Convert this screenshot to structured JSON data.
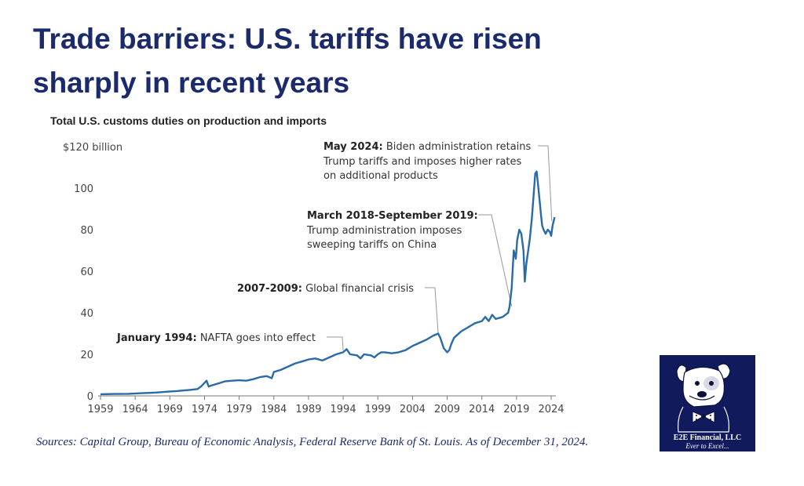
{
  "title": "Trade barriers: U.S. tariffs have risen sharply in recent years",
  "sources": "Sources: Capital Group, Bureau of Economic Analysis, Federal Reserve Bank of St. Louis. As of December 31, 2024.",
  "logo": {
    "name": "E2E Financial, LLC",
    "tagline": "Ever to Excel...",
    "icon": "dog-mascot-icon"
  },
  "colors": {
    "title": "#1b2a6b",
    "line": "#2a6aa8",
    "logo_bg": "#101a5c",
    "leader": "#999999"
  },
  "chart_data": {
    "type": "line",
    "title": "Total U.S. customs duties on production and imports",
    "ylabel": "$120 billion",
    "ylim": [
      0,
      120
    ],
    "xlim": [
      1959,
      2024.5
    ],
    "y_ticks": [
      0,
      20,
      40,
      60,
      80,
      100
    ],
    "y_tick_labels": [
      "0",
      "20",
      "40",
      "60",
      "80",
      "100"
    ],
    "x_ticks": [
      1959,
      1964,
      1969,
      1974,
      1979,
      1984,
      1989,
      1994,
      1999,
      2004,
      2009,
      2014,
      2019,
      2024
    ],
    "x_tick_labels": [
      "1959",
      "1964",
      "1969",
      "1974",
      "1979",
      "1984",
      "1989",
      "1994",
      "1999",
      "2004",
      "2009",
      "2014",
      "2019",
      "2024"
    ],
    "grid": false,
    "series": [
      {
        "x": [
          1959,
          1961,
          1963,
          1965,
          1967,
          1969,
          1970,
          1971,
          1972,
          1973,
          1973.5,
          1974.3,
          1974.6,
          1975,
          1976,
          1977,
          1978,
          1979,
          1980,
          1981,
          1982,
          1983,
          1983.7,
          1984,
          1985,
          1986,
          1987,
          1988,
          1989,
          1990,
          1991,
          1992,
          1993,
          1994,
          1994.5,
          1995,
          1996,
          1996.5,
          1997,
          1998,
          1998.5,
          1999,
          1999.5,
          2000,
          2001,
          2002,
          2003,
          2004,
          2005,
          2006,
          2007,
          2007.7,
          2008,
          2008.5,
          2009,
          2009.3,
          2009.6,
          2010,
          2011,
          2012,
          2013,
          2014,
          2014.5,
          2015,
          2015.5,
          2016,
          2017,
          2017.8,
          2018,
          2018.3,
          2018.6,
          2018.9,
          2019.1,
          2019.4,
          2019.7,
          2020,
          2020.2,
          2020.4,
          2020.6,
          2020.9,
          2021.2,
          2021.5,
          2021.7,
          2021.9,
          2022.1,
          2022.3,
          2022.5,
          2022.7,
          2022.9,
          2023.2,
          2023.5,
          2023.8,
          2024,
          2024.2,
          2024.5
        ],
        "values": [
          0.8,
          0.9,
          1.0,
          1.3,
          1.6,
          2.1,
          2.3,
          2.6,
          2.9,
          3.3,
          4.5,
          7.3,
          4.5,
          5.0,
          6.0,
          7.0,
          7.3,
          7.5,
          7.3,
          8.0,
          9.0,
          9.5,
          8.5,
          11.5,
          12.5,
          14.0,
          15.5,
          16.5,
          17.5,
          18.0,
          17.0,
          18.5,
          20.0,
          21.0,
          22.5,
          20.0,
          19.5,
          18.0,
          20.0,
          19.5,
          18.5,
          20.0,
          21.0,
          21.0,
          20.5,
          21.0,
          22.0,
          24.0,
          25.5,
          27.0,
          29.0,
          30.0,
          28.0,
          23.0,
          21.0,
          22.0,
          25.0,
          28.0,
          31.0,
          33.0,
          35.0,
          36.0,
          38.0,
          36.0,
          39.0,
          37.0,
          38.0,
          40.0,
          43.0,
          52.0,
          70.0,
          66.0,
          75.0,
          80.0,
          78.0,
          70.0,
          55.0,
          63.0,
          68.0,
          75.0,
          85.0,
          98.0,
          107.0,
          108.0,
          102.0,
          95.0,
          88.0,
          82.0,
          80.0,
          78.0,
          80.0,
          79.0,
          77.0,
          82.0,
          86.0
        ]
      }
    ],
    "annotations": [
      {
        "bold": "May 2024:",
        "text_lines": [
          "Biden administration retains",
          "Trump tariffs and imposes higher rates",
          "on additional products"
        ],
        "x": 2024.2,
        "y": 84
      },
      {
        "bold": "March 2018-September 2019:",
        "text_lines": [
          "",
          "Trump administration imposes",
          "sweeping tariffs on China"
        ],
        "x": 2018.3,
        "y": 43
      },
      {
        "bold": "2007-2009:",
        "text_lines": [
          "Global financial crisis"
        ],
        "x": 2007.7,
        "y": 30
      },
      {
        "bold": "January 1994:",
        "text_lines": [
          "NAFTA goes into effect"
        ],
        "x": 1994,
        "y": 21
      }
    ]
  }
}
